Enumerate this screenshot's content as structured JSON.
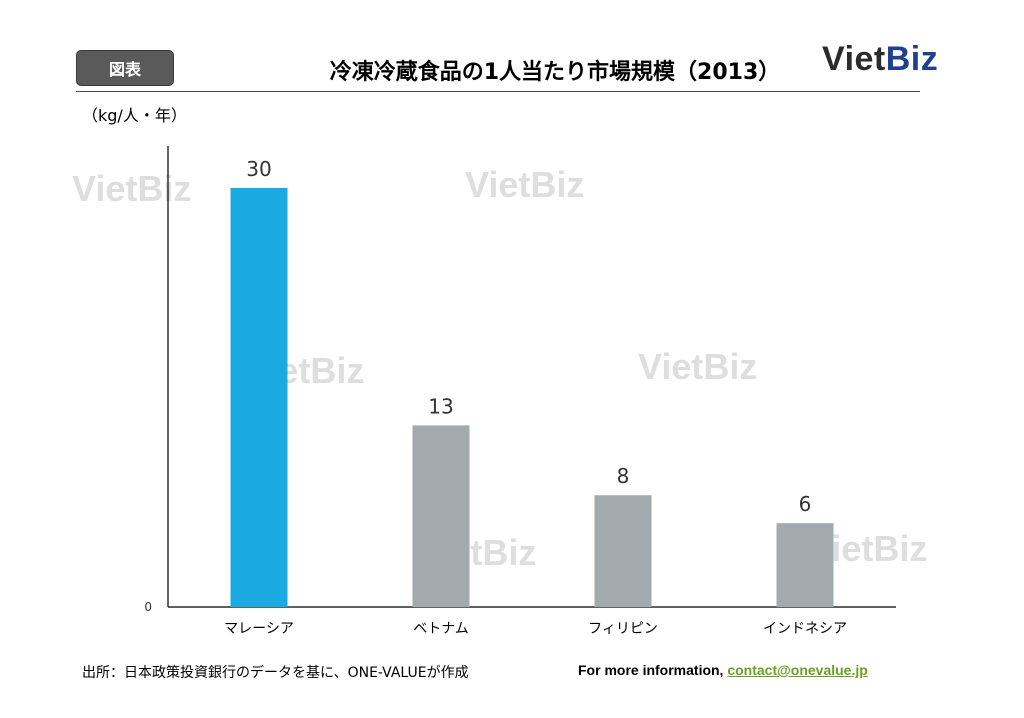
{
  "header": {
    "badge_label": "図表",
    "title": "冷凍冷蔵食品の1人当たり市場規模（2013）",
    "logo_viet": "Viet",
    "logo_biz": "Biz"
  },
  "watermarks": [
    "VietBiz",
    "VietBiz",
    "VietBiz",
    "VietBiz",
    "VietBiz",
    "VietBiz"
  ],
  "chart_data": {
    "type": "bar",
    "ylabel": "（kg/人・年）",
    "categories": [
      "マレーシア",
      "ベトナム",
      "フィリピン",
      "インドネシア"
    ],
    "values": [
      30,
      13,
      8,
      6
    ],
    "ylim": [
      0,
      33
    ],
    "y_tick_labels": [
      "0"
    ],
    "grid": false,
    "colors": [
      "#1ba9e1",
      "#a2aaae",
      "#a2aaae",
      "#a2aaae"
    ]
  },
  "footer": {
    "source": "出所：日本政策投資銀行のデータを基に、ONE-VALUEが作成",
    "info_prefix": "For more information, ",
    "info_link": "contact@onevalue.jp"
  }
}
